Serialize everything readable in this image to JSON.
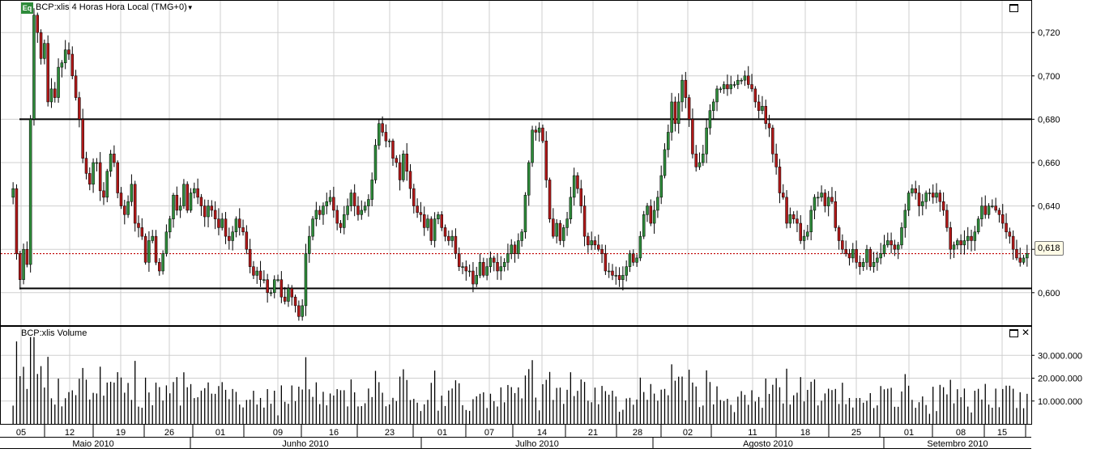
{
  "header": {
    "badge": "Eq",
    "title": "BCP:xlis 4 Horas Hora Local (TMG+0)",
    "dropdown_icon": "caret-down-icon",
    "volume_title": "BCP:xlis Volume"
  },
  "price_readout": "0,618",
  "colors": {
    "up": "#2e8b3a",
    "down": "#b01818",
    "grid": "#cfcfcf",
    "reference": "#c00000"
  },
  "chart_data": [
    {
      "type": "candlestick",
      "title": "BCP:xlis 4 Horas Hora Local (TMG+0)",
      "ylim": [
        0.585,
        0.735
      ],
      "y_ticks": [
        0.6,
        0.62,
        0.64,
        0.66,
        0.68,
        0.7,
        0.72
      ],
      "y_tick_labels": [
        "0,600",
        "0,620",
        "0,640",
        "0,660",
        "0,680",
        "0,700",
        "0,720"
      ],
      "support_resistance_lines": [
        0.68,
        0.602
      ],
      "last_price_line": 0.618,
      "grid": true,
      "closes": [
        0.648,
        0.618,
        0.606,
        0.62,
        0.613,
        0.68,
        0.728,
        0.72,
        0.708,
        0.715,
        0.688,
        0.694,
        0.69,
        0.704,
        0.706,
        0.712,
        0.71,
        0.7,
        0.69,
        0.68,
        0.662,
        0.655,
        0.65,
        0.66,
        0.66,
        0.647,
        0.644,
        0.656,
        0.664,
        0.66,
        0.646,
        0.64,
        0.636,
        0.642,
        0.65,
        0.632,
        0.63,
        0.626,
        0.614,
        0.624,
        0.626,
        0.614,
        0.61,
        0.618,
        0.628,
        0.634,
        0.645,
        0.638,
        0.64,
        0.65,
        0.638,
        0.646,
        0.648,
        0.644,
        0.64,
        0.635,
        0.64,
        0.638,
        0.634,
        0.63,
        0.634,
        0.626,
        0.624,
        0.628,
        0.634,
        0.63,
        0.628,
        0.62,
        0.612,
        0.608,
        0.61,
        0.606,
        0.606,
        0.6,
        0.6,
        0.606,
        0.606,
        0.598,
        0.596,
        0.602,
        0.598,
        0.594,
        0.589,
        0.594,
        0.618,
        0.626,
        0.634,
        0.638,
        0.636,
        0.64,
        0.642,
        0.644,
        0.638,
        0.632,
        0.63,
        0.636,
        0.64,
        0.646,
        0.64,
        0.636,
        0.638,
        0.64,
        0.643,
        0.652,
        0.668,
        0.678,
        0.674,
        0.67,
        0.67,
        0.662,
        0.66,
        0.652,
        0.664,
        0.656,
        0.648,
        0.64,
        0.637,
        0.636,
        0.63,
        0.634,
        0.624,
        0.634,
        0.636,
        0.63,
        0.626,
        0.624,
        0.626,
        0.618,
        0.612,
        0.612,
        0.61,
        0.61,
        0.604,
        0.608,
        0.614,
        0.608,
        0.612,
        0.616,
        0.614,
        0.61,
        0.612,
        0.614,
        0.618,
        0.622,
        0.618,
        0.624,
        0.628,
        0.645,
        0.66,
        0.675,
        0.674,
        0.676,
        0.67,
        0.652,
        0.634,
        0.626,
        0.632,
        0.624,
        0.63,
        0.634,
        0.644,
        0.654,
        0.648,
        0.64,
        0.626,
        0.622,
        0.624,
        0.622,
        0.62,
        0.618,
        0.61,
        0.61,
        0.608,
        0.608,
        0.606,
        0.608,
        0.612,
        0.618,
        0.614,
        0.616,
        0.626,
        0.636,
        0.64,
        0.632,
        0.638,
        0.644,
        0.654,
        0.666,
        0.674,
        0.688,
        0.678,
        0.688,
        0.698,
        0.69,
        0.68,
        0.664,
        0.658,
        0.66,
        0.664,
        0.676,
        0.684,
        0.688,
        0.694,
        0.694,
        0.696,
        0.694,
        0.696,
        0.696,
        0.698,
        0.698,
        0.7,
        0.696,
        0.694,
        0.688,
        0.684,
        0.686,
        0.678,
        0.676,
        0.664,
        0.658,
        0.646,
        0.644,
        0.632,
        0.636,
        0.634,
        0.632,
        0.624,
        0.626,
        0.628,
        0.638,
        0.644,
        0.644,
        0.646,
        0.64,
        0.644,
        0.642,
        0.63,
        0.624,
        0.62,
        0.618,
        0.616,
        0.62,
        0.614,
        0.612,
        0.614,
        0.62,
        0.612,
        0.614,
        0.616,
        0.618,
        0.622,
        0.624,
        0.622,
        0.62,
        0.622,
        0.63,
        0.638,
        0.646,
        0.648,
        0.646,
        0.64,
        0.642,
        0.646,
        0.646,
        0.644,
        0.646,
        0.642,
        0.638,
        0.63,
        0.62,
        0.622,
        0.624,
        0.622,
        0.624,
        0.626,
        0.624,
        0.628,
        0.634,
        0.64,
        0.636,
        0.64,
        0.64,
        0.638,
        0.636,
        0.632,
        0.628,
        0.626,
        0.62,
        0.616,
        0.614,
        0.616,
        0.618
      ]
    },
    {
      "type": "bar",
      "title": "BCP:xlis Volume",
      "ylim": [
        0,
        40000000
      ],
      "y_ticks": [
        10000000,
        20000000,
        30000000
      ],
      "y_tick_labels": [
        "10.000.000",
        "20.000.000",
        "30.000.000"
      ],
      "grid": true
    }
  ],
  "x_axis": {
    "day_labels": [
      "05",
      "12",
      "19",
      "26",
      "01",
      "09",
      "16",
      "23",
      "01",
      "07",
      "14",
      "21",
      "28",
      "02",
      "11",
      "18",
      "25",
      "01",
      "08",
      "15"
    ],
    "month_labels": [
      "Maio 2010",
      "Junho 2010",
      "Julho 2010",
      "Agosto 2010",
      "Setembro 2010"
    ]
  },
  "controls": {
    "maximize_icon": "maximize-icon",
    "close_icon": "close-icon",
    "close_glyph": "✕"
  }
}
